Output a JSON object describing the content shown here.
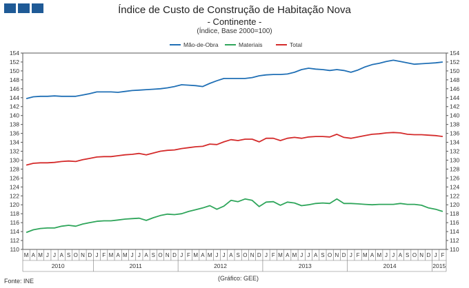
{
  "header": {
    "title": "Índice de Custo de Construção de Habitação Nova",
    "subtitle": "- Continente -",
    "unit_note": "(Índice, Base 2000=100)"
  },
  "footer": {
    "source": "Fonte: INE",
    "credit": "(Gráfico: GEE)"
  },
  "colors": {
    "mao_de_obra": "#1f6fb5",
    "materiais": "#2ea55a",
    "total": "#d42a2a",
    "logo": "#1f5a96"
  },
  "chart_data": {
    "type": "line",
    "title": "Índice de Custo de Construção de Habitação Nova",
    "ylim": [
      110,
      154
    ],
    "ytick_step": 2,
    "y_axes": "left and right",
    "grid": false,
    "legend_position": "top-center",
    "x": [
      "M",
      "A",
      "M",
      "J",
      "J",
      "A",
      "S",
      "O",
      "N",
      "D",
      "J",
      "F",
      "M",
      "A",
      "M",
      "J",
      "J",
      "A",
      "S",
      "O",
      "N",
      "D",
      "J",
      "F",
      "M",
      "A",
      "M",
      "J",
      "J",
      "A",
      "S",
      "O",
      "N",
      "D",
      "J",
      "F",
      "M",
      "A",
      "M",
      "J",
      "J",
      "A",
      "S",
      "O",
      "N",
      "D",
      "J",
      "F",
      "M",
      "A",
      "M",
      "J",
      "J",
      "A",
      "S",
      "O",
      "N",
      "D",
      "J",
      "F"
    ],
    "year_labels": [
      {
        "label": "2010",
        "start": 0,
        "end": 9
      },
      {
        "label": "2011",
        "start": 10,
        "end": 21
      },
      {
        "label": "2012",
        "start": 22,
        "end": 33
      },
      {
        "label": "2013",
        "start": 34,
        "end": 45
      },
      {
        "label": "2014",
        "start": 46,
        "end": 57
      },
      {
        "label": "2015",
        "start": 58,
        "end": 59
      }
    ],
    "series": [
      {
        "name": "Mão-de-Obra",
        "values": [
          143.8,
          144.2,
          144.3,
          144.3,
          144.4,
          144.3,
          144.3,
          144.3,
          144.6,
          144.9,
          145.3,
          145.3,
          145.3,
          145.2,
          145.4,
          145.6,
          145.7,
          145.8,
          145.9,
          146.0,
          146.2,
          146.5,
          146.9,
          146.8,
          146.7,
          146.5,
          147.2,
          147.8,
          148.3,
          148.3,
          148.3,
          148.3,
          148.5,
          148.9,
          149.1,
          149.2,
          149.2,
          149.3,
          149.7,
          150.3,
          150.6,
          150.4,
          150.3,
          150.1,
          150.3,
          150.1,
          149.7,
          150.2,
          150.9,
          151.4,
          151.7,
          152.1,
          152.4,
          152.1,
          151.8,
          151.5,
          151.6,
          151.7,
          151.8,
          152.0
        ]
      },
      {
        "name": "Materiais",
        "values": [
          113.8,
          114.4,
          114.7,
          114.8,
          114.8,
          115.2,
          115.4,
          115.2,
          115.7,
          116.0,
          116.3,
          116.4,
          116.4,
          116.6,
          116.8,
          116.9,
          117.0,
          116.5,
          117.1,
          117.6,
          117.9,
          117.8,
          118.0,
          118.5,
          118.9,
          119.3,
          119.8,
          119.0,
          119.7,
          121.0,
          120.7,
          121.3,
          121.0,
          119.6,
          120.6,
          120.7,
          119.9,
          120.6,
          120.4,
          119.8,
          120.0,
          120.3,
          120.4,
          120.3,
          121.3,
          120.3,
          120.3,
          120.2,
          120.1,
          120.0,
          120.1,
          120.1,
          120.1,
          120.3,
          120.1,
          120.1,
          119.9,
          119.3,
          119.0,
          118.5
        ]
      },
      {
        "name": "Total",
        "values": [
          128.9,
          129.3,
          129.4,
          129.4,
          129.5,
          129.7,
          129.8,
          129.7,
          130.1,
          130.4,
          130.7,
          130.8,
          130.8,
          131.0,
          131.2,
          131.3,
          131.5,
          131.2,
          131.6,
          132.0,
          132.2,
          132.3,
          132.6,
          132.8,
          133.0,
          133.1,
          133.6,
          133.5,
          134.1,
          134.6,
          134.4,
          134.7,
          134.7,
          134.1,
          134.9,
          134.9,
          134.4,
          134.9,
          135.1,
          134.9,
          135.2,
          135.3,
          135.3,
          135.2,
          135.8,
          135.1,
          134.9,
          135.2,
          135.5,
          135.8,
          135.9,
          136.1,
          136.2,
          136.1,
          135.8,
          135.7,
          135.7,
          135.6,
          135.5,
          135.3
        ]
      }
    ]
  }
}
